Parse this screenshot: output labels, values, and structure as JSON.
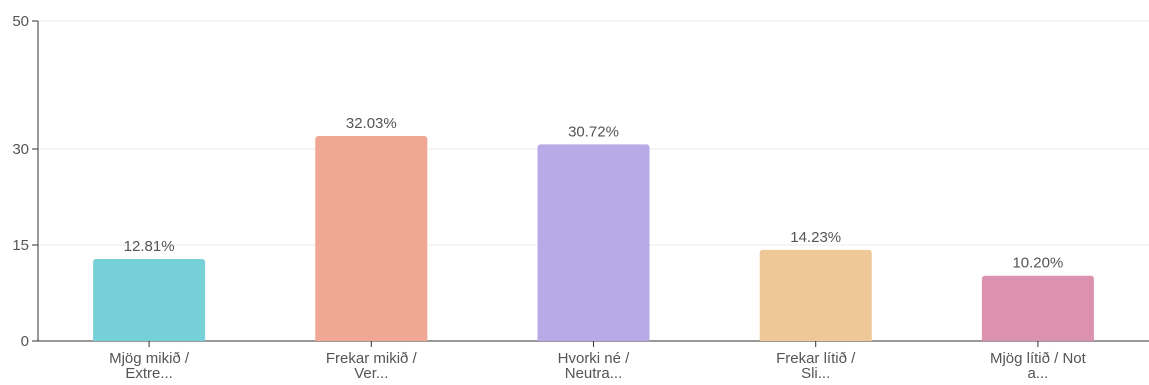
{
  "chart_data": {
    "type": "bar",
    "categories": [
      [
        "Mjög mikið /",
        "Extre..."
      ],
      [
        "Frekar mikið /",
        "Ver..."
      ],
      [
        "Hvorki né /",
        "Neutra..."
      ],
      [
        "Frekar lítið /",
        "Sli..."
      ],
      [
        "Mjög lítið / Not",
        "a..."
      ]
    ],
    "values": [
      12.81,
      32.03,
      30.72,
      14.23,
      10.2
    ],
    "data_labels": [
      "12.81%",
      "32.03%",
      "30.72%",
      "14.23%",
      "10.20%"
    ],
    "colors": [
      "#76d0d8",
      "#f0a894",
      "#b8aae6",
      "#eec896",
      "#dc92ae"
    ],
    "ylim": [
      0,
      50
    ],
    "yticks": [
      0,
      15,
      30,
      50
    ],
    "title": "",
    "xlabel": "",
    "ylabel": "",
    "grid": true,
    "legend": "none"
  }
}
